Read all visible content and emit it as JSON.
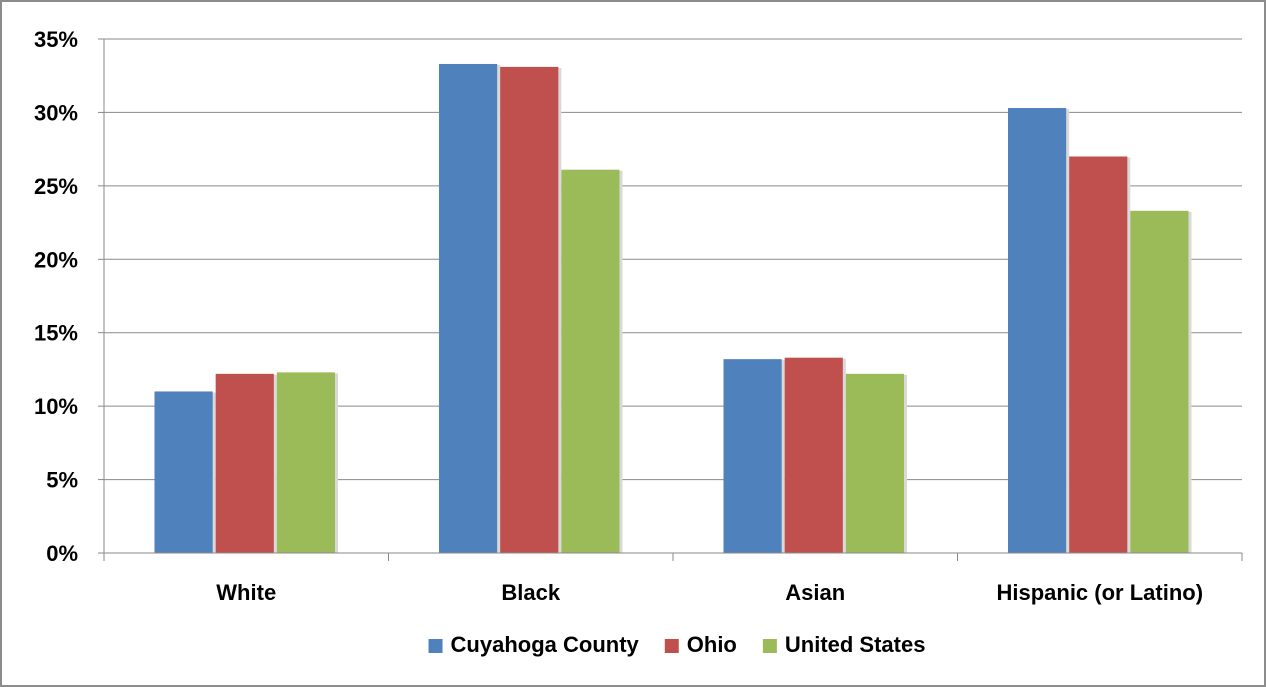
{
  "chart_data": {
    "type": "bar",
    "title": "",
    "xlabel": "",
    "ylabel": "",
    "categories": [
      "White",
      "Black",
      "Asian",
      "Hispanic (or Latino)"
    ],
    "series": [
      {
        "name": "Cuyahoga County",
        "color": "#4f81bd",
        "values": [
          11.0,
          33.3,
          13.2,
          30.3
        ]
      },
      {
        "name": "Ohio",
        "color": "#c0504d",
        "values": [
          12.2,
          33.1,
          13.3,
          27.0
        ]
      },
      {
        "name": "United States",
        "color": "#9bbb59",
        "values": [
          12.3,
          26.1,
          12.2,
          23.3
        ]
      }
    ],
    "ylim": [
      0,
      35
    ],
    "yticks": [
      0,
      5,
      10,
      15,
      20,
      25,
      30,
      35
    ],
    "ytick_labels": [
      "0%",
      "5%",
      "10%",
      "15%",
      "20%",
      "25%",
      "30%",
      "35%"
    ],
    "grid": true,
    "legend_position": "bottom"
  }
}
